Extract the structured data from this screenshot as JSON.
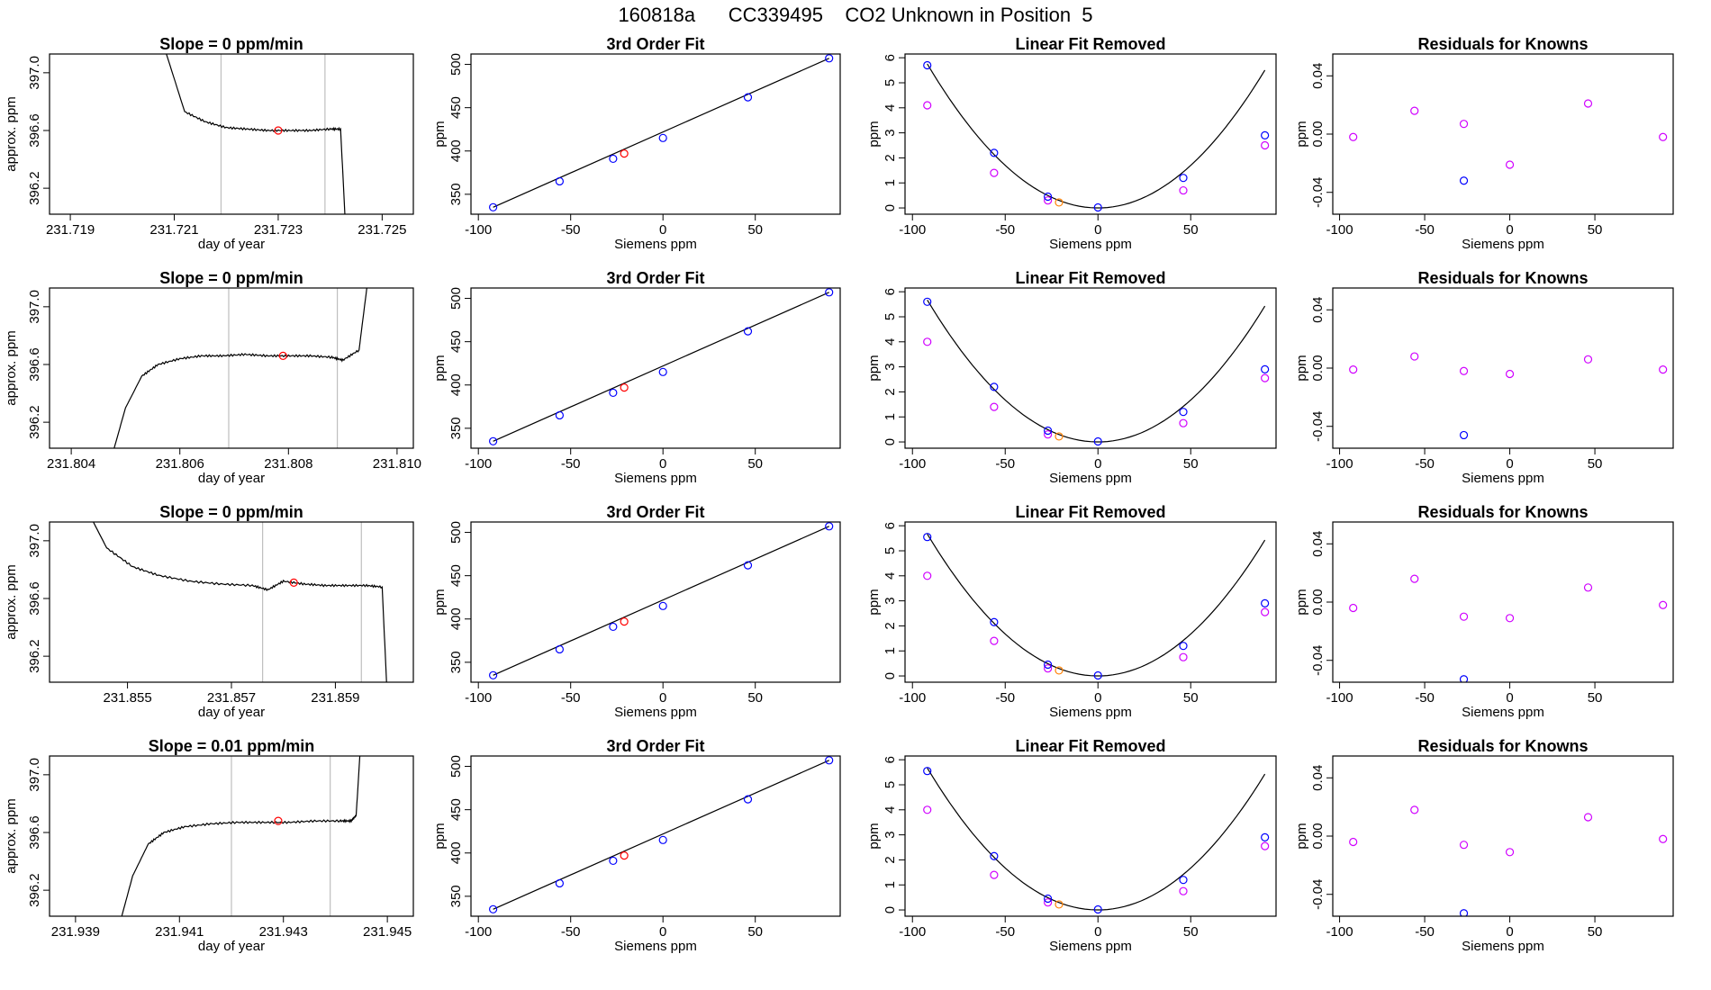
{
  "figure": {
    "title": "160818a      CC339495    CO2 Unknown in Position  5"
  },
  "colors": {
    "axis": "#000000",
    "line": "#000000",
    "vline": "#bebebe",
    "unknown_red": "#ff0000",
    "unknown_orange": "#ff7f00",
    "known_blue": "#0000ff",
    "magenta": "#d000ff"
  },
  "chart_data": [
    {
      "panel": "r1-ts",
      "type": "line",
      "title": "Slope =  0  ppm/min",
      "xlabel": "day of year",
      "ylabel": "approx. ppm",
      "xlim": [
        231.7186,
        231.7256
      ],
      "ylim": [
        396.02,
        397.13
      ],
      "xticks": [
        231.719,
        231.721,
        231.723,
        231.725
      ],
      "xtick_labels": [
        "231.719",
        "231.721",
        "231.723",
        "231.725"
      ],
      "yticks": [
        396.2,
        396.6,
        397.0
      ],
      "ytick_labels": [
        "396.2",
        "396.6",
        "397.0"
      ],
      "vlines": [
        231.7219,
        231.7239
      ],
      "series": [
        {
          "x": [
            231.7207,
            231.7212,
            231.7216,
            231.722,
            231.7224,
            231.7228,
            231.7232,
            231.7236,
            231.724,
            231.7242,
            231.7243
          ],
          "y": [
            397.3,
            396.73,
            396.66,
            396.62,
            396.61,
            396.6,
            396.6,
            396.6,
            396.61,
            396.61,
            395.9
          ]
        }
      ],
      "highlight": {
        "x": 231.723,
        "y": 396.6
      }
    },
    {
      "panel": "r1-fit",
      "type": "scatter",
      "title": "3rd Order Fit",
      "xlabel": "Siemens ppm",
      "ylabel": "ppm",
      "xlim": [
        -104,
        96
      ],
      "ylim": [
        327,
        512
      ],
      "xticks": [
        -100,
        -50,
        0,
        50
      ],
      "xtick_labels": [
        "-100",
        "-50",
        "0",
        "50"
      ],
      "yticks": [
        350,
        400,
        450,
        500
      ],
      "ytick_labels": [
        "350",
        "400",
        "450",
        "500"
      ],
      "knowns": [
        [
          -92,
          335
        ],
        [
          -56,
          365
        ],
        [
          -27,
          391
        ],
        [
          0,
          415
        ],
        [
          46,
          462
        ],
        [
          90,
          507
        ]
      ],
      "unknowns": [
        [
          -21,
          397
        ]
      ]
    },
    {
      "panel": "r1-lin",
      "type": "scatter",
      "title": "Linear Fit Removed",
      "xlabel": "Siemens ppm",
      "ylabel": "ppm",
      "xlim": [
        -104,
        96
      ],
      "ylim": [
        -0.25,
        6.15
      ],
      "xticks": [
        -100,
        -50,
        0,
        50
      ],
      "xtick_labels": [
        "-100",
        "-50",
        "0",
        "50"
      ],
      "yticks": [
        0,
        1,
        2,
        3,
        4,
        5,
        6
      ],
      "ytick_labels": [
        "0",
        "1",
        "2",
        "3",
        "4",
        "5",
        "6"
      ],
      "curve_coef": [
        0.00068,
        0.0
      ],
      "blue": [
        [
          -92,
          5.7
        ],
        [
          -56,
          2.2
        ],
        [
          -27,
          0.45
        ],
        [
          0,
          0.02
        ],
        [
          46,
          1.2
        ],
        [
          90,
          2.9
        ]
      ],
      "magenta": [
        [
          -92,
          4.1
        ],
        [
          -56,
          1.4
        ],
        [
          -27,
          0.3
        ],
        [
          46,
          0.7
        ],
        [
          90,
          2.5
        ]
      ],
      "unknown": [
        [
          -21,
          0.22
        ]
      ]
    },
    {
      "panel": "r1-res",
      "type": "scatter",
      "title": "Residuals for Knowns",
      "xlabel": "Siemens ppm",
      "ylabel": "ppm",
      "xlim": [
        -104,
        96
      ],
      "ylim": [
        -0.055,
        0.055
      ],
      "xticks": [
        -100,
        -50,
        0,
        50
      ],
      "xtick_labels": [
        "-100",
        "-50",
        "0",
        "50"
      ],
      "yticks": [
        -0.04,
        0.0,
        0.04
      ],
      "ytick_labels": [
        "-0.04",
        "0.00",
        "0.04"
      ],
      "magenta": [
        [
          -92,
          -0.002
        ],
        [
          -56,
          0.016
        ],
        [
          -27,
          0.007
        ],
        [
          0,
          -0.021
        ],
        [
          46,
          0.021
        ],
        [
          90,
          -0.002
        ]
      ],
      "blue": [
        [
          -27,
          -0.032
        ]
      ]
    },
    {
      "panel": "r2-ts",
      "type": "line",
      "title": "Slope =  0  ppm/min",
      "xlabel": "day of year",
      "ylabel": "approx. ppm",
      "xlim": [
        231.8036,
        231.8103
      ],
      "ylim": [
        396.02,
        397.13
      ],
      "xticks": [
        231.804,
        231.806,
        231.808,
        231.81
      ],
      "xtick_labels": [
        "231.804",
        "231.806",
        "231.808",
        "231.810"
      ],
      "vlines": [
        231.8069,
        231.8089
      ],
      "yticks": [
        396.2,
        396.6,
        397.0
      ],
      "ytick_labels": [
        "396.2",
        "396.6",
        "397.0"
      ],
      "series": [
        {
          "x": [
            231.8047,
            231.805,
            231.8053,
            231.8056,
            231.806,
            231.8064,
            231.8068,
            231.8072,
            231.8076,
            231.808,
            231.8084,
            231.8088,
            231.809,
            231.8093,
            231.8095
          ],
          "y": [
            395.9,
            396.3,
            396.52,
            396.6,
            396.64,
            396.66,
            396.66,
            396.67,
            396.66,
            396.66,
            396.66,
            396.65,
            396.63,
            396.7,
            397.3
          ]
        }
      ],
      "highlight": {
        "x": 231.8079,
        "y": 396.66
      }
    },
    {
      "panel": "r2-fit",
      "type": "scatter",
      "title": "3rd Order Fit",
      "xlabel": "Siemens ppm",
      "ylabel": "ppm",
      "xlim": [
        -104,
        96
      ],
      "ylim": [
        327,
        512
      ],
      "xticks": [
        -100,
        -50,
        0,
        50
      ],
      "xtick_labels": [
        "-100",
        "-50",
        "0",
        "50"
      ],
      "yticks": [
        350,
        400,
        450,
        500
      ],
      "ytick_labels": [
        "350",
        "400",
        "450",
        "500"
      ],
      "knowns": [
        [
          -92,
          335
        ],
        [
          -56,
          365
        ],
        [
          -27,
          391
        ],
        [
          0,
          415
        ],
        [
          46,
          462
        ],
        [
          90,
          507
        ]
      ],
      "unknowns": [
        [
          -21,
          397
        ]
      ]
    },
    {
      "panel": "r2-lin",
      "type": "scatter",
      "title": "Linear Fit Removed",
      "xlabel": "Siemens ppm",
      "ylabel": "ppm",
      "xlim": [
        -104,
        96
      ],
      "ylim": [
        -0.25,
        6.15
      ],
      "xticks": [
        -100,
        -50,
        0,
        50
      ],
      "xtick_labels": [
        "-100",
        "-50",
        "0",
        "50"
      ],
      "yticks": [
        0,
        1,
        2,
        3,
        4,
        5,
        6
      ],
      "ytick_labels": [
        "0",
        "1",
        "2",
        "3",
        "4",
        "5",
        "6"
      ],
      "curve_coef": [
        0.00067,
        0.0
      ],
      "blue": [
        [
          -92,
          5.6
        ],
        [
          -56,
          2.2
        ],
        [
          -27,
          0.45
        ],
        [
          0,
          0.02
        ],
        [
          46,
          1.2
        ],
        [
          90,
          2.9
        ]
      ],
      "magenta": [
        [
          -92,
          4.0
        ],
        [
          -56,
          1.4
        ],
        [
          -27,
          0.3
        ],
        [
          46,
          0.75
        ],
        [
          90,
          2.55
        ]
      ],
      "unknown": [
        [
          -21,
          0.22
        ]
      ]
    },
    {
      "panel": "r2-res",
      "type": "scatter",
      "title": "Residuals for Knowns",
      "xlabel": "Siemens ppm",
      "ylabel": "ppm",
      "xlim": [
        -104,
        96
      ],
      "ylim": [
        -0.055,
        0.055
      ],
      "xticks": [
        -100,
        -50,
        0,
        50
      ],
      "xtick_labels": [
        "-100",
        "-50",
        "0",
        "50"
      ],
      "yticks": [
        -0.04,
        0.0,
        0.04
      ],
      "ytick_labels": [
        "-0.04",
        "0.00",
        "0.04"
      ],
      "magenta": [
        [
          -92,
          -0.001
        ],
        [
          -56,
          0.008
        ],
        [
          -27,
          -0.002
        ],
        [
          0,
          -0.004
        ],
        [
          46,
          0.006
        ],
        [
          90,
          -0.001
        ]
      ],
      "blue": [
        [
          -27,
          -0.046
        ]
      ]
    },
    {
      "panel": "r3-ts",
      "type": "line",
      "title": "Slope =  0  ppm/min",
      "xlabel": "day of year",
      "ylabel": "approx. ppm",
      "xlim": [
        231.8535,
        231.8605
      ],
      "ylim": [
        396.02,
        397.13
      ],
      "xticks": [
        231.855,
        231.857,
        231.859
      ],
      "xtick_labels": [
        "231.855",
        "231.857",
        "231.859"
      ],
      "vlines": [
        231.8576,
        231.8595
      ],
      "yticks": [
        396.2,
        396.6,
        397.0
      ],
      "ytick_labels": [
        "396.2",
        "396.6",
        "397.0"
      ],
      "series": [
        {
          "x": [
            231.8541,
            231.8546,
            231.8551,
            231.8556,
            231.8562,
            231.8568,
            231.8574,
            231.8577,
            231.858,
            231.8584,
            231.8588,
            231.8592,
            231.8596,
            231.8599,
            231.86
          ],
          "y": [
            397.3,
            396.95,
            396.82,
            396.76,
            396.72,
            396.7,
            396.69,
            396.66,
            396.72,
            396.7,
            396.69,
            396.69,
            396.69,
            396.68,
            395.9
          ]
        }
      ],
      "highlight": {
        "x": 231.8582,
        "y": 396.71
      }
    },
    {
      "panel": "r3-fit",
      "type": "scatter",
      "title": "3rd Order Fit",
      "xlabel": "Siemens ppm",
      "ylabel": "ppm",
      "xlim": [
        -104,
        96
      ],
      "ylim": [
        327,
        512
      ],
      "xticks": [
        -100,
        -50,
        0,
        50
      ],
      "xtick_labels": [
        "-100",
        "-50",
        "0",
        "50"
      ],
      "yticks": [
        350,
        400,
        450,
        500
      ],
      "ytick_labels": [
        "350",
        "400",
        "450",
        "500"
      ],
      "knowns": [
        [
          -92,
          335
        ],
        [
          -56,
          365
        ],
        [
          -27,
          391
        ],
        [
          0,
          415
        ],
        [
          46,
          462
        ],
        [
          90,
          507
        ]
      ],
      "unknowns": [
        [
          -21,
          397
        ]
      ]
    },
    {
      "panel": "r3-lin",
      "type": "scatter",
      "title": "Linear Fit Removed",
      "xlabel": "Siemens ppm",
      "ylabel": "ppm",
      "xlim": [
        -104,
        96
      ],
      "ylim": [
        -0.25,
        6.15
      ],
      "xticks": [
        -100,
        -50,
        0,
        50
      ],
      "xtick_labels": [
        "-100",
        "-50",
        "0",
        "50"
      ],
      "yticks": [
        0,
        1,
        2,
        3,
        4,
        5,
        6
      ],
      "ytick_labels": [
        "0",
        "1",
        "2",
        "3",
        "4",
        "5",
        "6"
      ],
      "curve_coef": [
        0.00067,
        0.0
      ],
      "blue": [
        [
          -92,
          5.55
        ],
        [
          -56,
          2.15
        ],
        [
          -27,
          0.45
        ],
        [
          0,
          0.02
        ],
        [
          46,
          1.2
        ],
        [
          90,
          2.9
        ]
      ],
      "magenta": [
        [
          -92,
          4.0
        ],
        [
          -56,
          1.4
        ],
        [
          -27,
          0.3
        ],
        [
          46,
          0.75
        ],
        [
          90,
          2.55
        ]
      ],
      "unknown": [
        [
          -21,
          0.22
        ]
      ]
    },
    {
      "panel": "r3-res",
      "type": "scatter",
      "title": "Residuals for Knowns",
      "xlabel": "Siemens ppm",
      "ylabel": "ppm",
      "xlim": [
        -104,
        96
      ],
      "ylim": [
        -0.055,
        0.055
      ],
      "xticks": [
        -100,
        -50,
        0,
        50
      ],
      "xtick_labels": [
        "-100",
        "-50",
        "0",
        "50"
      ],
      "yticks": [
        -0.04,
        0.0,
        0.04
      ],
      "ytick_labels": [
        "-0.04",
        "0.00",
        "0.04"
      ],
      "magenta": [
        [
          -92,
          -0.004
        ],
        [
          -56,
          0.016
        ],
        [
          -27,
          -0.01
        ],
        [
          0,
          -0.011
        ],
        [
          46,
          0.01
        ],
        [
          90,
          -0.002
        ]
      ],
      "blue": [
        [
          -27,
          -0.053
        ]
      ]
    },
    {
      "panel": "r4-ts",
      "type": "line",
      "title": "Slope =  0.01  ppm/min",
      "xlabel": "day of year",
      "ylabel": "approx. ppm",
      "xlim": [
        231.9385,
        231.9455
      ],
      "ylim": [
        396.02,
        397.13
      ],
      "xticks": [
        231.939,
        231.941,
        231.943,
        231.945
      ],
      "xtick_labels": [
        "231.939",
        "231.941",
        "231.943",
        "231.945"
      ],
      "vlines": [
        231.942,
        231.9439
      ],
      "yticks": [
        396.2,
        396.6,
        397.0
      ],
      "ytick_labels": [
        "396.2",
        "396.6",
        "397.0"
      ],
      "series": [
        {
          "x": [
            231.9398,
            231.9401,
            231.9404,
            231.9407,
            231.9411,
            231.9416,
            231.9421,
            231.9426,
            231.9431,
            231.9436,
            231.9441,
            231.9443,
            231.9444,
            231.9445
          ],
          "y": [
            395.9,
            396.3,
            396.52,
            396.6,
            396.64,
            396.66,
            396.67,
            396.67,
            396.67,
            396.68,
            396.68,
            396.68,
            396.72,
            397.3
          ]
        }
      ],
      "highlight": {
        "x": 231.9429,
        "y": 396.68
      }
    },
    {
      "panel": "r4-fit",
      "type": "scatter",
      "title": "3rd Order Fit",
      "xlabel": "Siemens ppm",
      "ylabel": "ppm",
      "xlim": [
        -104,
        96
      ],
      "ylim": [
        327,
        512
      ],
      "xticks": [
        -100,
        -50,
        0,
        50
      ],
      "xtick_labels": [
        "-100",
        "-50",
        "0",
        "50"
      ],
      "yticks": [
        350,
        400,
        450,
        500
      ],
      "ytick_labels": [
        "350",
        "400",
        "450",
        "500"
      ],
      "knowns": [
        [
          -92,
          335
        ],
        [
          -56,
          365
        ],
        [
          -27,
          391
        ],
        [
          0,
          415
        ],
        [
          46,
          462
        ],
        [
          90,
          507
        ]
      ],
      "unknowns": [
        [
          -21,
          397
        ]
      ]
    },
    {
      "panel": "r4-lin",
      "type": "scatter",
      "title": "Linear Fit Removed",
      "xlabel": "Siemens ppm",
      "ylabel": "ppm",
      "xlim": [
        -104,
        96
      ],
      "ylim": [
        -0.25,
        6.15
      ],
      "xticks": [
        -100,
        -50,
        0,
        50
      ],
      "xtick_labels": [
        "-100",
        "-50",
        "0",
        "50"
      ],
      "yticks": [
        0,
        1,
        2,
        3,
        4,
        5,
        6
      ],
      "ytick_labels": [
        "0",
        "1",
        "2",
        "3",
        "4",
        "5",
        "6"
      ],
      "curve_coef": [
        0.00067,
        0.0
      ],
      "blue": [
        [
          -92,
          5.55
        ],
        [
          -56,
          2.15
        ],
        [
          -27,
          0.45
        ],
        [
          0,
          0.02
        ],
        [
          46,
          1.2
        ],
        [
          90,
          2.9
        ]
      ],
      "magenta": [
        [
          -92,
          4.0
        ],
        [
          -56,
          1.4
        ],
        [
          -27,
          0.3
        ],
        [
          46,
          0.75
        ],
        [
          90,
          2.55
        ]
      ],
      "unknown": [
        [
          -21,
          0.22
        ]
      ]
    },
    {
      "panel": "r4-res",
      "type": "scatter",
      "title": "Residuals for Knowns",
      "xlabel": "Siemens ppm",
      "ylabel": "ppm",
      "xlim": [
        -104,
        96
      ],
      "ylim": [
        -0.055,
        0.055
      ],
      "xticks": [
        -100,
        -50,
        0,
        50
      ],
      "xtick_labels": [
        "-100",
        "-50",
        "0",
        "50"
      ],
      "yticks": [
        -0.04,
        0.0,
        0.04
      ],
      "ytick_labels": [
        "-0.04",
        "0.00",
        "0.04"
      ],
      "magenta": [
        [
          -92,
          -0.004
        ],
        [
          -56,
          0.018
        ],
        [
          -27,
          -0.006
        ],
        [
          0,
          -0.011
        ],
        [
          46,
          0.013
        ],
        [
          90,
          -0.002
        ]
      ],
      "blue": [
        [
          -27,
          -0.053
        ]
      ]
    }
  ]
}
